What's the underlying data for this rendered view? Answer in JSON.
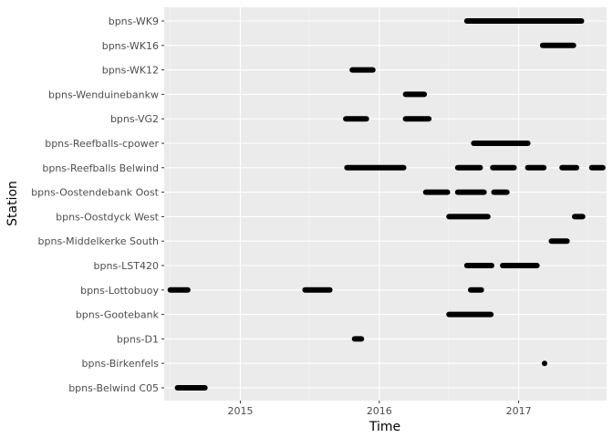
{
  "chart_data": {
    "type": "timeline",
    "xlabel": "Time",
    "ylabel": "Station",
    "x_tick_labels": [
      "2015",
      "2016",
      "2017"
    ],
    "xlim": [
      "2014-06-15",
      "2017-08-20"
    ],
    "grid": true,
    "colors": {
      "panel": "#ebebeb",
      "grid": "#ffffff",
      "segment": "#000000"
    },
    "stations": [
      "bpns-WK9",
      "bpns-WK16",
      "bpns-WK12",
      "bpns-Wenduinebankw",
      "bpns-VG2",
      "bpns-Reefballs-cpower",
      "bpns-Reefballs Belwind",
      "bpns-Oostendebank Oost",
      "bpns-Oostdyck West",
      "bpns-Middelkerke South",
      "bpns-LST420",
      "bpns-Lottobuoy",
      "bpns-Gootebank",
      "bpns-D1",
      "bpns-Birkenfels",
      "bpns-Belwind C05"
    ],
    "segments": [
      {
        "station": "bpns-WK9",
        "start": "2016-08-18",
        "end": "2017-06-15"
      },
      {
        "station": "bpns-WK16",
        "start": "2017-03-05",
        "end": "2017-05-25"
      },
      {
        "station": "bpns-WK12",
        "start": "2015-10-22",
        "end": "2015-12-15"
      },
      {
        "station": "bpns-Wenduinebankw",
        "start": "2016-03-10",
        "end": "2016-04-28"
      },
      {
        "station": "bpns-VG2",
        "start": "2015-10-05",
        "end": "2015-11-28"
      },
      {
        "station": "bpns-VG2",
        "start": "2016-03-10",
        "end": "2016-05-10"
      },
      {
        "station": "bpns-Reefballs-cpower",
        "start": "2016-09-05",
        "end": "2017-01-25"
      },
      {
        "station": "bpns-Reefballs Belwind",
        "start": "2015-10-08",
        "end": "2016-03-05"
      },
      {
        "station": "bpns-Reefballs Belwind",
        "start": "2016-07-25",
        "end": "2016-09-22"
      },
      {
        "station": "bpns-Reefballs Belwind",
        "start": "2016-10-25",
        "end": "2016-12-20"
      },
      {
        "station": "bpns-Reefballs Belwind",
        "start": "2017-01-25",
        "end": "2017-03-08"
      },
      {
        "station": "bpns-Reefballs Belwind",
        "start": "2017-04-25",
        "end": "2017-06-02"
      },
      {
        "station": "bpns-Reefballs Belwind",
        "start": "2017-07-12",
        "end": "2017-08-10"
      },
      {
        "station": "bpns-Oostendebank Oost",
        "start": "2016-05-02",
        "end": "2016-06-28"
      },
      {
        "station": "bpns-Oostendebank Oost",
        "start": "2016-07-25",
        "end": "2016-10-02"
      },
      {
        "station": "bpns-Oostendebank Oost",
        "start": "2016-10-28",
        "end": "2016-12-01"
      },
      {
        "station": "bpns-Oostdyck West",
        "start": "2016-07-02",
        "end": "2016-10-12"
      },
      {
        "station": "bpns-Oostdyck West",
        "start": "2017-05-28",
        "end": "2017-06-18"
      },
      {
        "station": "bpns-Middelkerke South",
        "start": "2017-03-28",
        "end": "2017-05-08"
      },
      {
        "station": "bpns-LST420",
        "start": "2016-08-18",
        "end": "2016-10-22"
      },
      {
        "station": "bpns-LST420",
        "start": "2016-11-20",
        "end": "2017-02-18"
      },
      {
        "station": "bpns-Lottobuoy",
        "start": "2014-07-01",
        "end": "2014-08-16"
      },
      {
        "station": "bpns-Lottobuoy",
        "start": "2015-06-20",
        "end": "2015-08-24"
      },
      {
        "station": "bpns-Lottobuoy",
        "start": "2016-08-28",
        "end": "2016-09-25"
      },
      {
        "station": "bpns-Gootebank",
        "start": "2016-07-02",
        "end": "2016-10-20"
      },
      {
        "station": "bpns-D1",
        "start": "2015-10-28",
        "end": "2015-11-15"
      },
      {
        "station": "bpns-Birkenfels",
        "start": "2017-03-10",
        "end": "2017-03-10"
      },
      {
        "station": "bpns-Belwind C05",
        "start": "2014-07-20",
        "end": "2014-09-30"
      }
    ]
  }
}
